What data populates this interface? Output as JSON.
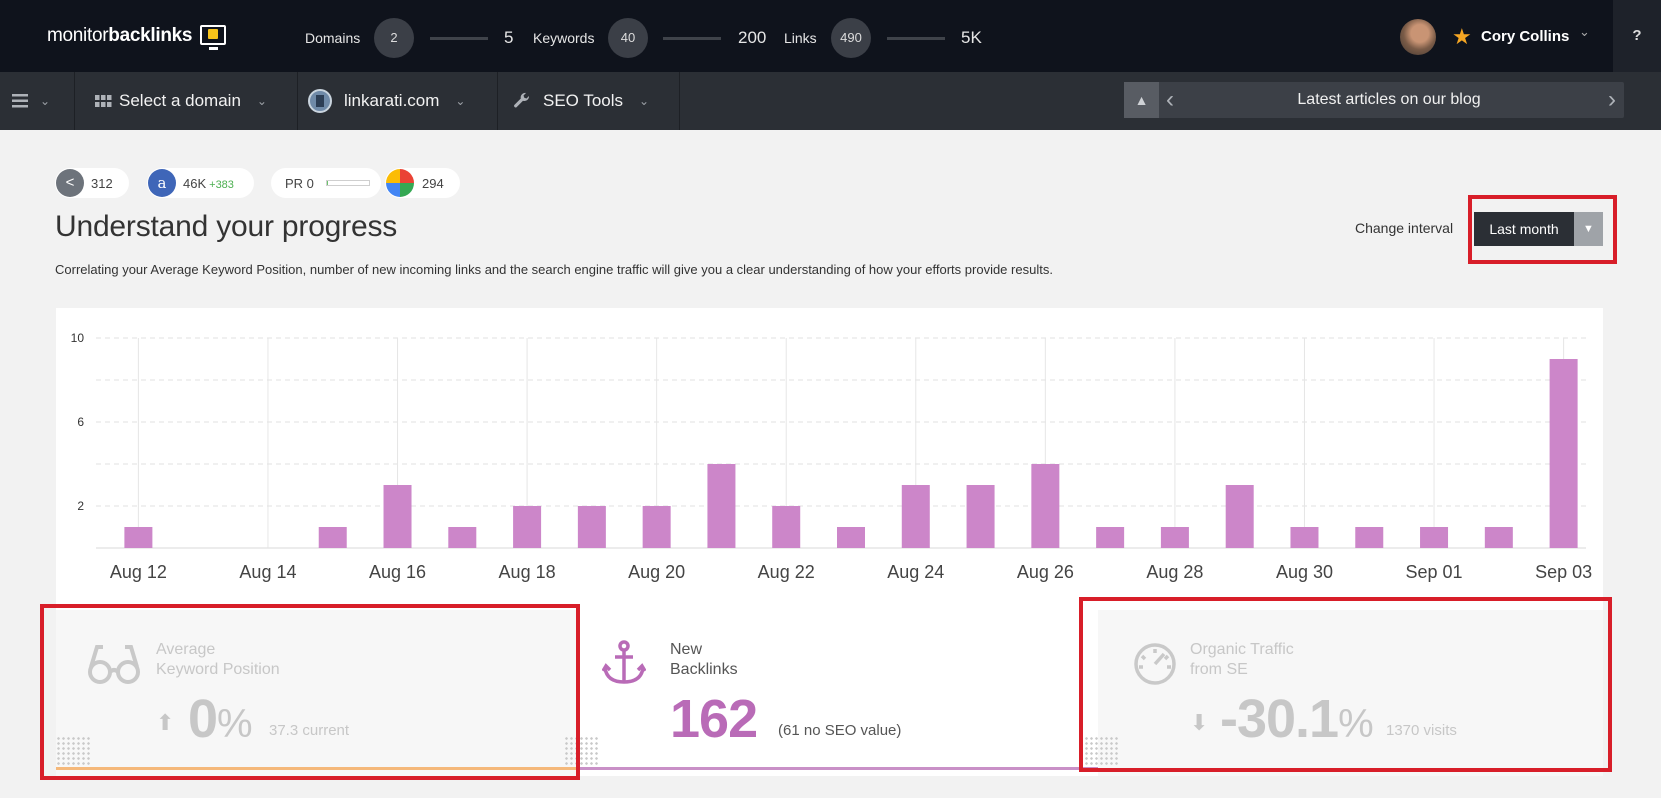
{
  "app": {
    "logo_regular": "monitor",
    "logo_bold": "backlinks"
  },
  "topbar": {
    "domains": {
      "label": "Domains",
      "current": "2",
      "max": "5"
    },
    "keywords": {
      "label": "Keywords",
      "current": "40",
      "max": "200"
    },
    "links": {
      "label": "Links",
      "current": "490",
      "max": "5K"
    },
    "user_name": "Cory Collins",
    "help": "?"
  },
  "nav": {
    "select_domain": "Select a domain",
    "domain": "linkarati.com",
    "seo_tools": "SEO Tools",
    "blog_title": "Latest articles on our blog"
  },
  "metrics": {
    "shares": "312",
    "alexa": "46K",
    "alexa_delta": "+383",
    "pr_label": "PR 0",
    "pr_fill": 0.02,
    "google": "294"
  },
  "header": {
    "title": "Understand your progress",
    "description": "Correlating your Average Keyword Position, number of new incoming links and the search engine traffic will give you a clear understanding of how your efforts provide results.",
    "interval_label": "Change interval",
    "interval_value": "Last month"
  },
  "chart_data": {
    "type": "bar",
    "categories": [
      "Aug 12",
      "Aug 13",
      "Aug 14",
      "Aug 15",
      "Aug 16",
      "Aug 17",
      "Aug 18",
      "Aug 19",
      "Aug 20",
      "Aug 21",
      "Aug 22",
      "Aug 23",
      "Aug 24",
      "Aug 25",
      "Aug 26",
      "Aug 27",
      "Aug 28",
      "Aug 29",
      "Aug 30",
      "Aug 31",
      "Sep 01",
      "Sep 02",
      "Sep 03"
    ],
    "values": [
      1,
      0,
      0,
      1,
      3,
      1,
      2,
      2,
      2,
      4,
      2,
      1,
      3,
      3,
      4,
      1,
      1,
      3,
      1,
      1,
      1,
      1,
      9
    ],
    "x_tick_labels": [
      "Aug 12",
      "Aug 14",
      "Aug 16",
      "Aug 18",
      "Aug 20",
      "Aug 22",
      "Aug 24",
      "Aug 26",
      "Aug 28",
      "Aug 30",
      "Sep 01",
      "Sep 03"
    ],
    "y_ticks": [
      "10",
      "6",
      "2"
    ],
    "ylim": [
      0,
      10
    ],
    "grid": true,
    "bar_color": "#cc86c9"
  },
  "summary": {
    "keyword_position": {
      "title1": "Average",
      "title2": "Keyword Position",
      "value": "0",
      "unit": "%",
      "sub": "37.3 current",
      "line_color": "#f5b87a"
    },
    "backlinks": {
      "title1": "New",
      "title2": "Backlinks",
      "value": "162",
      "sub": "(61 no SEO value)",
      "color": "#b96bb7",
      "line_color": "#c990c7"
    },
    "traffic": {
      "title1": "Organic Traffic",
      "title2": "from SE",
      "value": "-30.1",
      "unit": "%",
      "sub": "1370 visits"
    }
  },
  "icons": {
    "menu": "hamburger-icon",
    "grid": "grid-icon",
    "wrench": "wrench-icon",
    "rocket": "rocket-icon",
    "star": "star-icon",
    "share": "share-icon",
    "alexa": "alexa-icon",
    "google": "google-icon",
    "glasses": "glasses-icon",
    "anchor": "anchor-icon",
    "gauge": "speedometer-icon"
  }
}
